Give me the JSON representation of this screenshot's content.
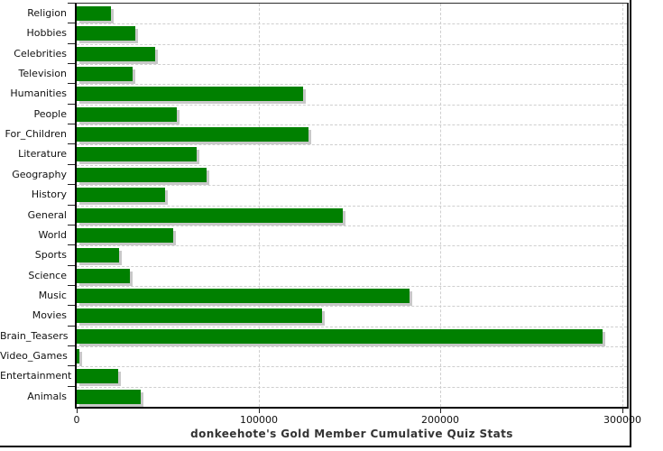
{
  "chart_data": {
    "type": "bar",
    "orientation": "horizontal",
    "title": "donkeehote's Gold Member Cumulative Quiz Stats",
    "categories": [
      "Religion",
      "Hobbies",
      "Celebrities",
      "Television",
      "Humanities",
      "People",
      "For_Children",
      "Literature",
      "Geography",
      "History",
      "General",
      "World",
      "Sports",
      "Science",
      "Music",
      "Movies",
      "Brain_Teasers",
      "Video_Games",
      "Entertainment",
      "Animals"
    ],
    "values": [
      19000,
      32000,
      43000,
      30500,
      124500,
      55000,
      127500,
      66000,
      71500,
      48500,
      146500,
      53000,
      23500,
      29500,
      183000,
      135000,
      289000,
      1500,
      23000,
      35000
    ],
    "xlabel": "",
    "ylabel": "",
    "xlim": [
      0,
      300000
    ],
    "x_ticks": [
      0,
      100000,
      200000,
      300000
    ],
    "x_tick_labels": [
      "0",
      "100000",
      "200000",
      "300000"
    ],
    "grid": {
      "x": true,
      "y": true,
      "style": "dashed"
    },
    "legend": "none",
    "colors": {
      "bar": "#008000",
      "bar_shadow": "#c8c8c8",
      "grid": "#cfcfcf",
      "axis": "#000000",
      "tick_text": "#111111",
      "title_text": "#333333",
      "background": "#ffffff"
    }
  }
}
